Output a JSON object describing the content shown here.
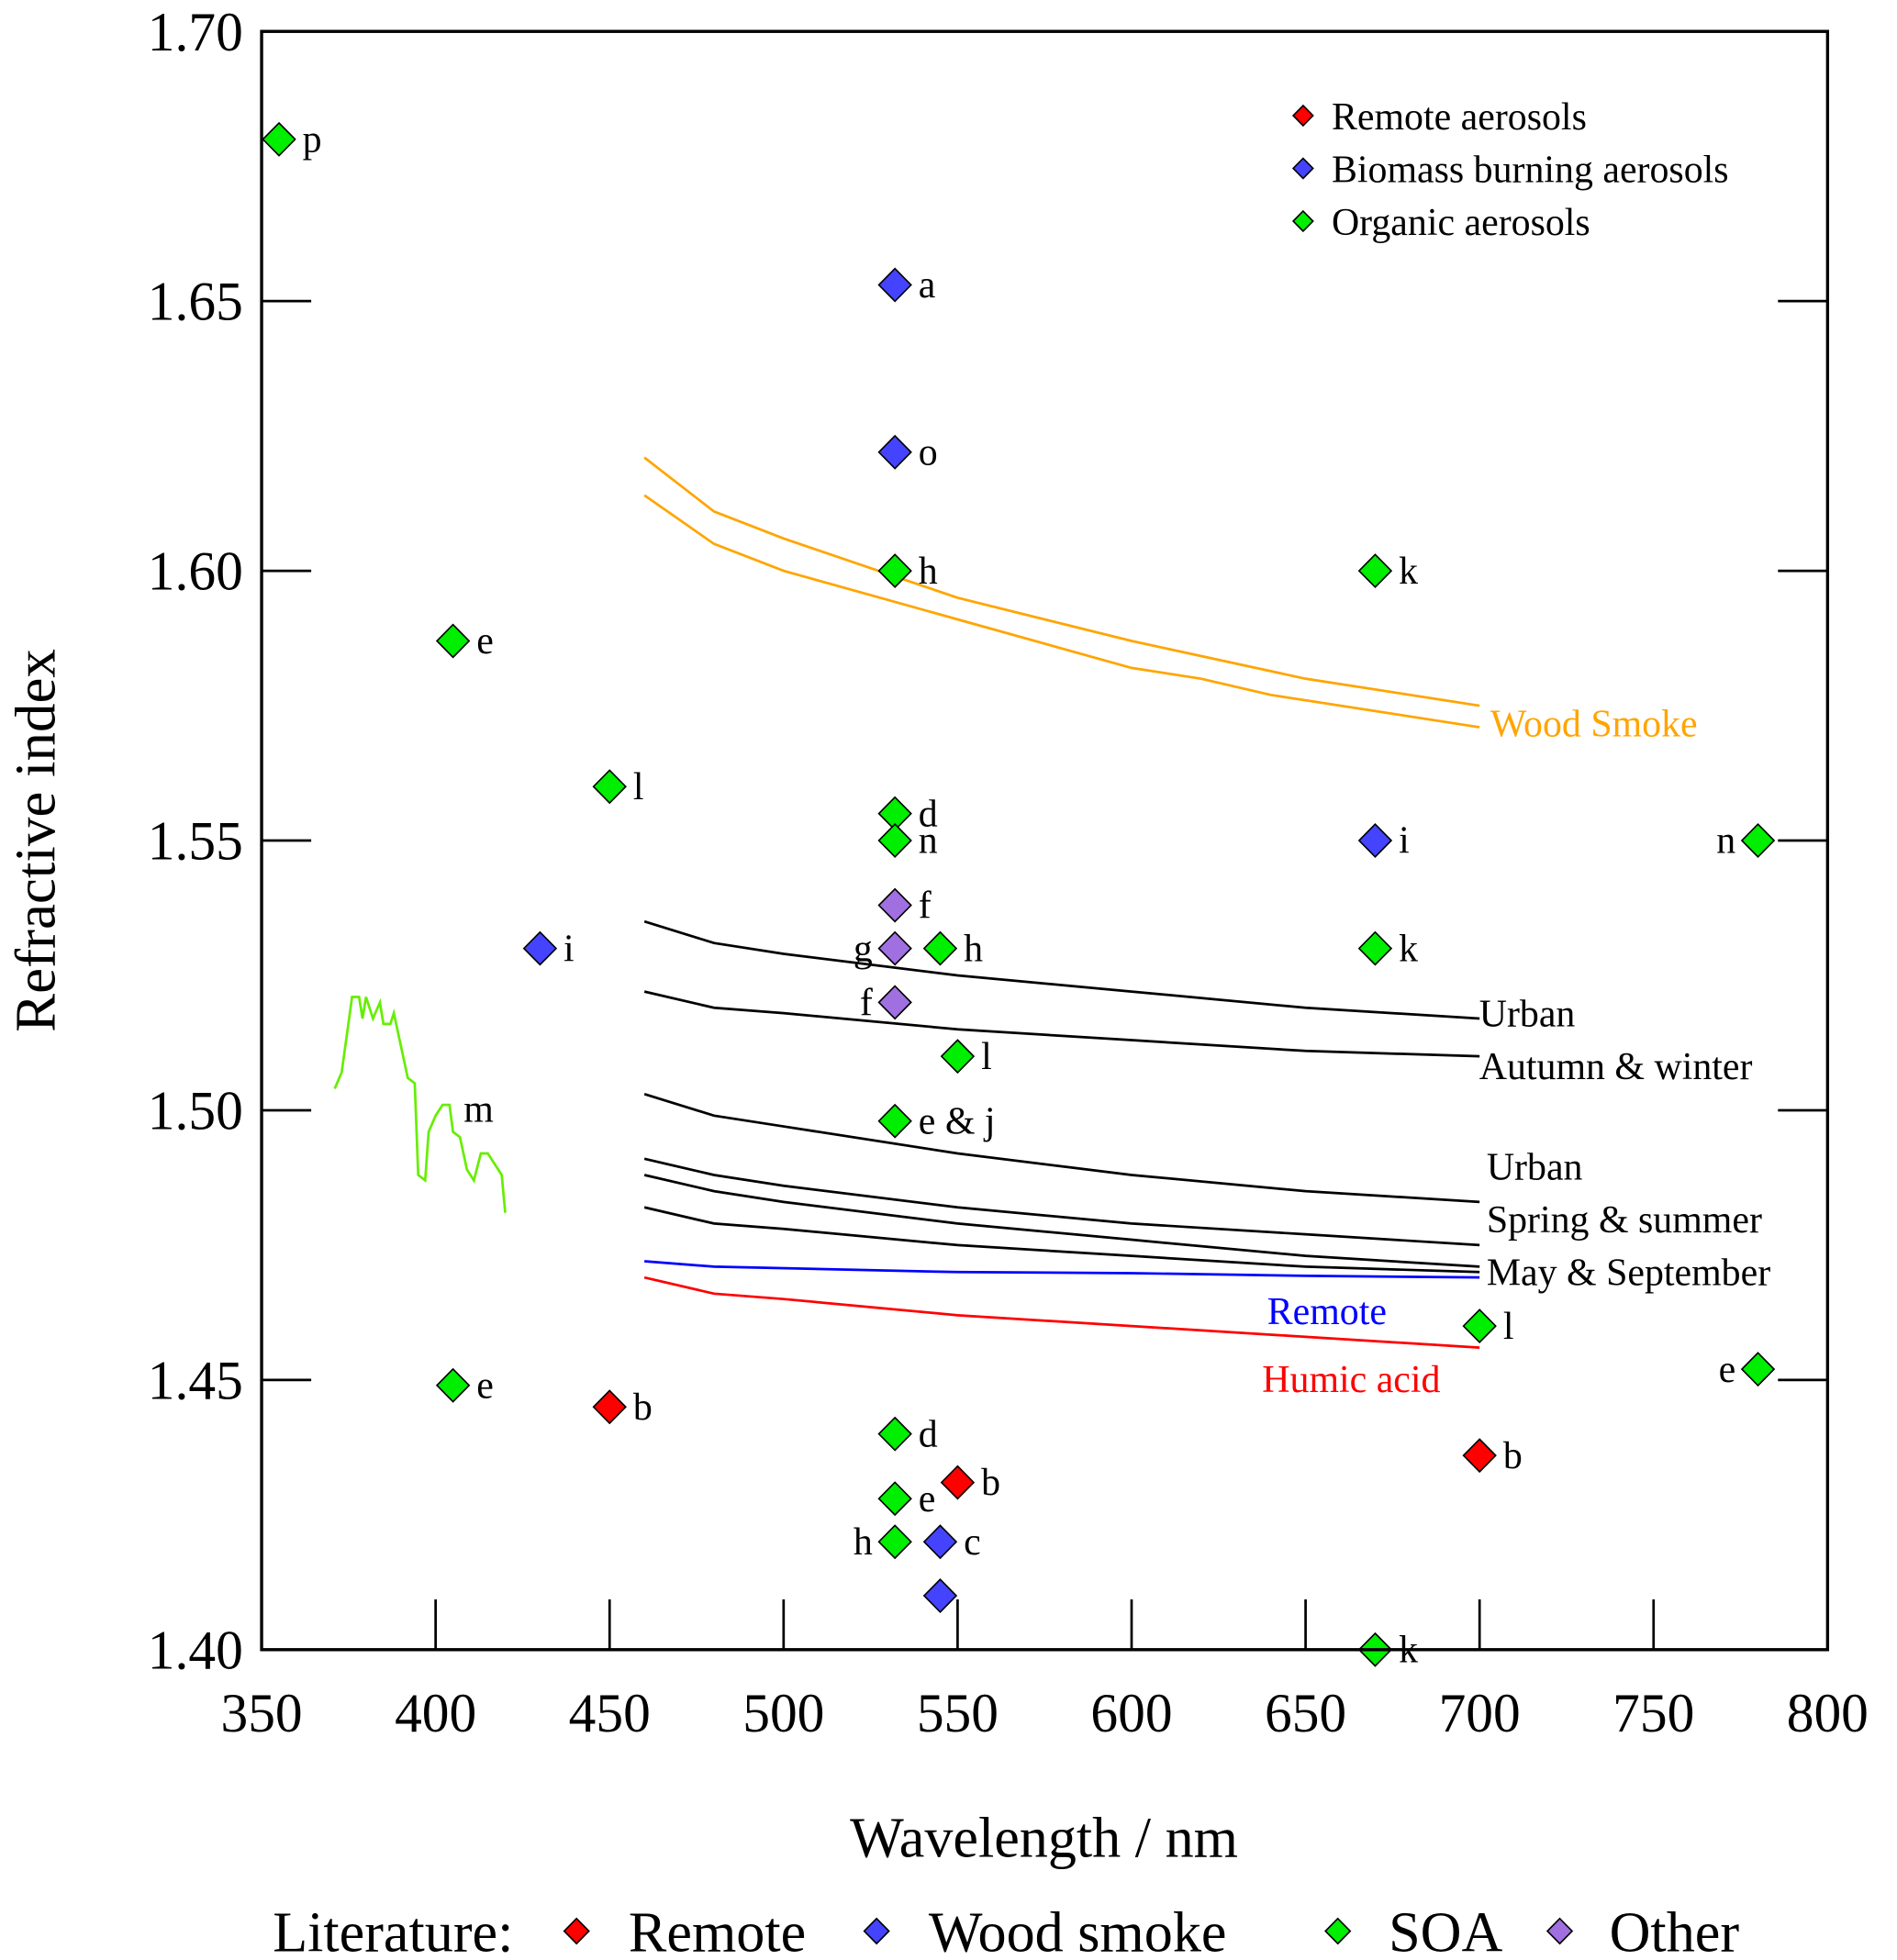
{
  "chart_data": {
    "type": "scatter",
    "xlabel": "Wavelength / nm",
    "ylabel": "Refractive index",
    "xlim": [
      350,
      800
    ],
    "ylim": [
      1.4,
      1.7
    ],
    "xticks": [
      "350",
      "400",
      "450",
      "500",
      "550",
      "600",
      "650",
      "700",
      "750",
      "800"
    ],
    "yticks": [
      "1.40",
      "1.45",
      "1.50",
      "1.55",
      "1.60",
      "1.65",
      "1.70"
    ],
    "grid": false,
    "legend_inner": {
      "placement": "top-right",
      "entries": [
        {
          "label": "Remote aerosols",
          "color": "#ff0000"
        },
        {
          "label": "Biomass burning aerosols",
          "color": "#4444ff"
        },
        {
          "label": "Organic aerosols",
          "color": "#00ee00"
        }
      ]
    },
    "legend_bottom": {
      "title": "Literature:",
      "entries": [
        {
          "label": "Remote",
          "color": "#ff0000"
        },
        {
          "label": "Wood smoke",
          "color": "#4444ff"
        },
        {
          "label": "SOA",
          "color": "#00ee00"
        },
        {
          "label": "Other",
          "color": "#a070e0"
        }
      ]
    },
    "points": [
      {
        "group": "Remote",
        "x": 450,
        "y": 1.445,
        "label": "b"
      },
      {
        "group": "Remote",
        "x": 550,
        "y": 1.431,
        "label": "b"
      },
      {
        "group": "Remote",
        "x": 700,
        "y": 1.436,
        "label": "b"
      },
      {
        "group": "Wood smoke",
        "x": 532,
        "y": 1.653,
        "label": "a"
      },
      {
        "group": "Wood smoke",
        "x": 532,
        "y": 1.622,
        "label": "o"
      },
      {
        "group": "Wood smoke",
        "x": 430,
        "y": 1.53,
        "label": "i"
      },
      {
        "group": "Wood smoke",
        "x": 670,
        "y": 1.55,
        "label": "i"
      },
      {
        "group": "Wood smoke",
        "x": 545,
        "y": 1.42,
        "label": "c"
      },
      {
        "group": "Wood smoke",
        "x": 545,
        "y": 1.41,
        "label": ""
      },
      {
        "group": "SOA",
        "x": 355,
        "y": 1.68,
        "label": "p"
      },
      {
        "group": "SOA",
        "x": 405,
        "y": 1.587,
        "label": "e"
      },
      {
        "group": "SOA",
        "x": 532,
        "y": 1.6,
        "label": "h"
      },
      {
        "group": "SOA",
        "x": 670,
        "y": 1.6,
        "label": "k"
      },
      {
        "group": "SOA",
        "x": 450,
        "y": 1.56,
        "label": "l"
      },
      {
        "group": "SOA",
        "x": 532,
        "y": 1.555,
        "label": "d"
      },
      {
        "group": "SOA",
        "x": 532,
        "y": 1.55,
        "label": "n"
      },
      {
        "group": "SOA",
        "x": 780,
        "y": 1.55,
        "label": "n",
        "side": "left"
      },
      {
        "group": "SOA",
        "x": 545,
        "y": 1.53,
        "label": "h"
      },
      {
        "group": "SOA",
        "x": 670,
        "y": 1.53,
        "label": "k"
      },
      {
        "group": "SOA",
        "x": 550,
        "y": 1.51,
        "label": "l"
      },
      {
        "group": "SOA",
        "x": 532,
        "y": 1.498,
        "label": "e & j"
      },
      {
        "group": "SOA",
        "x": 700,
        "y": 1.46,
        "label": "l"
      },
      {
        "group": "SOA",
        "x": 405,
        "y": 1.449,
        "label": "e"
      },
      {
        "group": "SOA",
        "x": 780,
        "y": 1.452,
        "label": "e",
        "side": "left"
      },
      {
        "group": "SOA",
        "x": 532,
        "y": 1.44,
        "label": "d"
      },
      {
        "group": "SOA",
        "x": 532,
        "y": 1.428,
        "label": "e"
      },
      {
        "group": "SOA",
        "x": 532,
        "y": 1.42,
        "label": "h",
        "side": "left"
      },
      {
        "group": "SOA",
        "x": 670,
        "y": 1.4,
        "label": "k"
      },
      {
        "group": "Other",
        "x": 532,
        "y": 1.538,
        "label": "f"
      },
      {
        "group": "Other",
        "x": 532,
        "y": 1.53,
        "label": "g",
        "side": "left"
      },
      {
        "group": "Other",
        "x": 532,
        "y": 1.52,
        "label": "f",
        "side": "left"
      }
    ],
    "lines": [
      {
        "color": "#ffa500",
        "label": "Wood Smoke",
        "x": [
          460,
          480,
          500,
          550,
          600,
          650,
          700
        ],
        "y": [
          1.621,
          1.611,
          1.606,
          1.595,
          1.587,
          1.58,
          1.575
        ]
      },
      {
        "color": "#ffa500",
        "label": "",
        "x": [
          460,
          480,
          500,
          550,
          600,
          620,
          640,
          700
        ],
        "y": [
          1.614,
          1.605,
          1.6,
          1.591,
          1.582,
          1.58,
          1.577,
          1.571
        ]
      },
      {
        "color": "#000000",
        "label": "Urban",
        "x": [
          460,
          480,
          500,
          550,
          600,
          650,
          700
        ],
        "y": [
          1.535,
          1.531,
          1.529,
          1.525,
          1.522,
          1.519,
          1.517
        ]
      },
      {
        "color": "#000000",
        "label": "Autumn & winter",
        "x": [
          460,
          480,
          500,
          550,
          600,
          650,
          700
        ],
        "y": [
          1.522,
          1.519,
          1.518,
          1.515,
          1.513,
          1.511,
          1.51
        ]
      },
      {
        "color": "#000000",
        "label": "Urban",
        "x": [
          460,
          480,
          500,
          550,
          600,
          650,
          700
        ],
        "y": [
          1.503,
          1.499,
          1.497,
          1.492,
          1.488,
          1.485,
          1.483
        ]
      },
      {
        "color": "#000000",
        "label": "Spring & summer",
        "x": [
          460,
          480,
          500,
          550,
          600,
          650,
          700
        ],
        "y": [
          1.491,
          1.488,
          1.486,
          1.482,
          1.479,
          1.477,
          1.475
        ]
      },
      {
        "color": "#000000",
        "label": "May & September",
        "x": [
          460,
          480,
          500,
          550,
          600,
          650,
          700
        ],
        "y": [
          1.488,
          1.485,
          1.483,
          1.479,
          1.476,
          1.473,
          1.471
        ]
      },
      {
        "color": "#000000",
        "label": "",
        "x": [
          460,
          480,
          500,
          550,
          600,
          650,
          700
        ],
        "y": [
          1.482,
          1.479,
          1.478,
          1.475,
          1.473,
          1.471,
          1.47
        ]
      },
      {
        "color": "#0000ff",
        "label": "Remote",
        "x": [
          460,
          480,
          550,
          600,
          650,
          700
        ],
        "y": [
          1.472,
          1.471,
          1.47,
          1.4698,
          1.4693,
          1.469
        ]
      },
      {
        "color": "#ff0000",
        "label": "Humic acid",
        "x": [
          460,
          480,
          500,
          550,
          600,
          650,
          700
        ],
        "y": [
          1.469,
          1.466,
          1.465,
          1.462,
          1.46,
          1.458,
          1.456
        ]
      },
      {
        "color": "#66ee00",
        "label": "m",
        "x": [
          371,
          373,
          376,
          378,
          379,
          380,
          382,
          384,
          385,
          387,
          388,
          390,
          392,
          394,
          395,
          397,
          398,
          400,
          402,
          404,
          405,
          407,
          409,
          411,
          413,
          415,
          417,
          419,
          420
        ],
        "y": [
          1.504,
          1.507,
          1.521,
          1.521,
          1.517,
          1.521,
          1.517,
          1.52,
          1.516,
          1.516,
          1.518,
          1.512,
          1.506,
          1.505,
          1.488,
          1.487,
          1.496,
          1.499,
          1.501,
          1.501,
          1.496,
          1.495,
          1.489,
          1.487,
          1.492,
          1.492,
          1.49,
          1.488,
          1.481
        ]
      }
    ]
  }
}
